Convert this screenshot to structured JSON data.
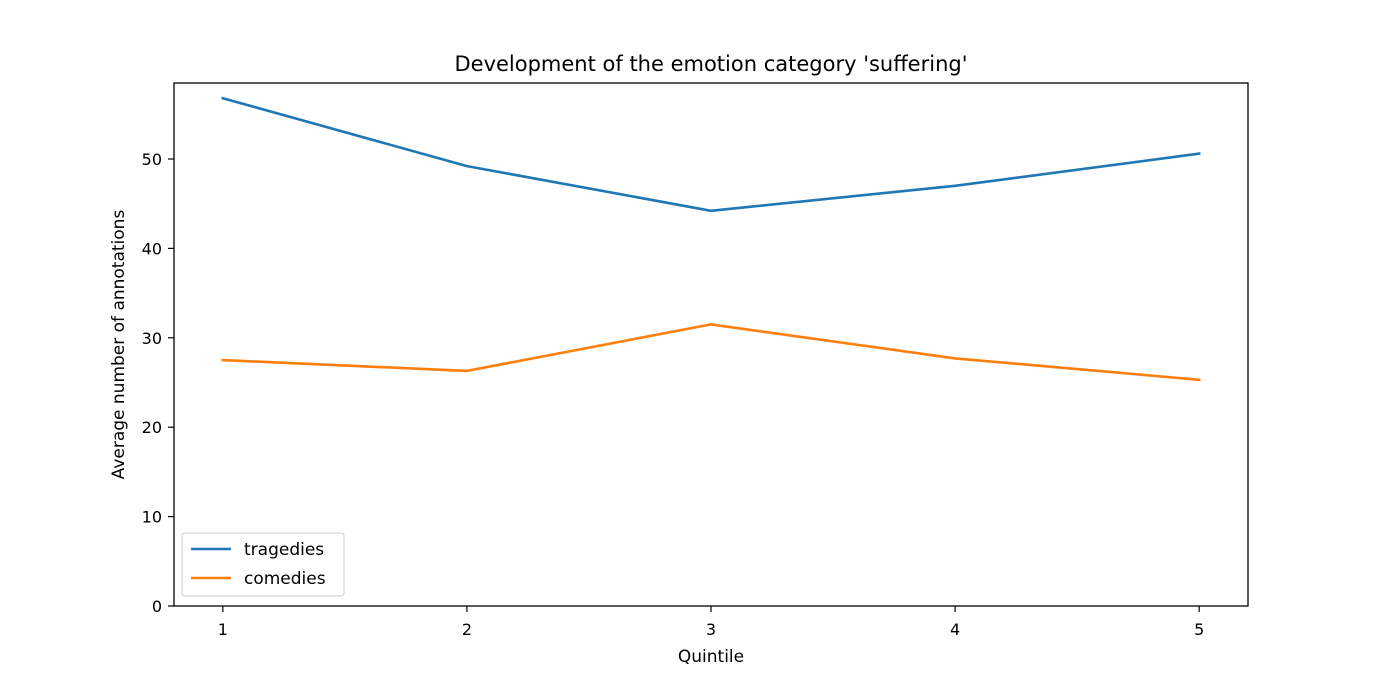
{
  "chart_data": {
    "type": "line",
    "title": "Development of the emotion category 'suffering'",
    "xlabel": "Quintile",
    "ylabel": "Average number of annotations",
    "x": [
      1,
      2,
      3,
      4,
      5
    ],
    "xlim": [
      0.8,
      5.2
    ],
    "ylim": [
      0,
      58.5
    ],
    "xticks": [
      1,
      2,
      3,
      4,
      5
    ],
    "yticks": [
      0,
      10,
      20,
      30,
      40,
      50
    ],
    "grid": false,
    "legend_position": "lower-left",
    "series": [
      {
        "name": "tragedies",
        "color": "#1f77b4",
        "values": [
          56.8,
          49.2,
          44.2,
          47.0,
          50.6
        ]
      },
      {
        "name": "comedies",
        "color": "#ff7f0e",
        "values": [
          27.5,
          26.3,
          31.5,
          27.7,
          25.3
        ]
      }
    ]
  }
}
